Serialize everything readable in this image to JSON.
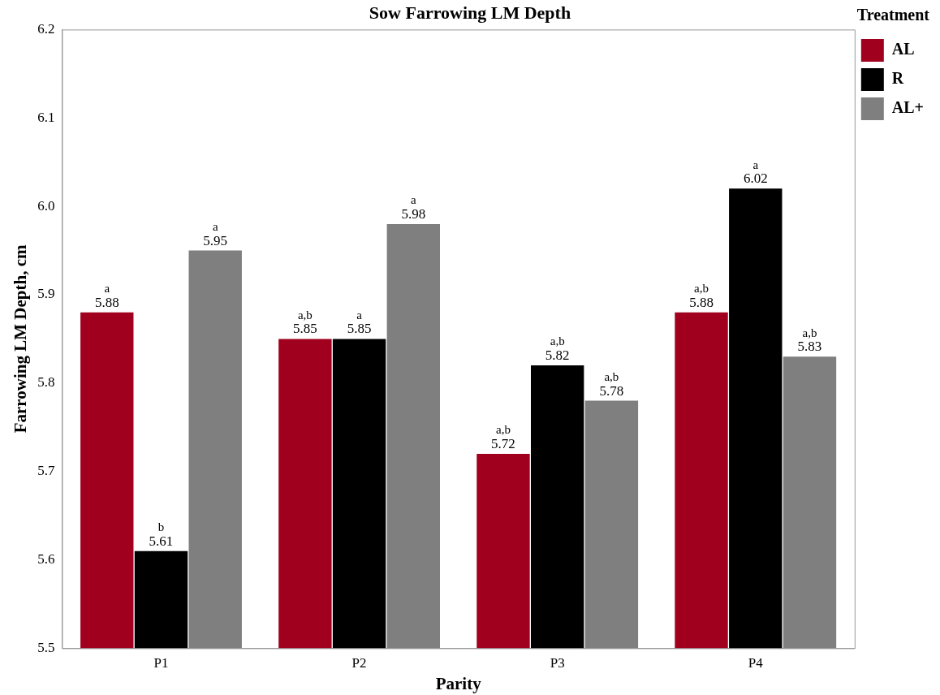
{
  "chart_data": {
    "type": "bar",
    "title": "Sow Farrowing LM Depth",
    "xlabel": "Parity",
    "ylabel": "Farrowing LM Depth, cm",
    "legend_title": "Treatment",
    "legend": "right",
    "grid": false,
    "categories": [
      "P1",
      "P2",
      "P3",
      "P4"
    ],
    "ylim": [
      5.5,
      6.2
    ],
    "yticks": [
      {
        "value": 5.5,
        "label": "5.5"
      },
      {
        "value": 5.6,
        "label": "5.6"
      },
      {
        "value": 5.7,
        "label": "5.7"
      },
      {
        "value": 5.8,
        "label": "5.8"
      },
      {
        "value": 5.9,
        "label": "5.9"
      },
      {
        "value": 6.0,
        "label": "6.0"
      },
      {
        "value": 6.1,
        "label": "6.1"
      },
      {
        "value": 6.2,
        "label": "6.2"
      }
    ],
    "series": [
      {
        "name": "AL",
        "color": "#a0001e",
        "values": [
          5.88,
          5.85,
          5.72,
          5.88
        ],
        "value_labels": [
          "a\n5.88",
          "a,b\n5.85",
          "a,b\n5.72",
          "a,b\n5.88"
        ]
      },
      {
        "name": "R",
        "color": "#000000",
        "values": [
          5.61,
          5.85,
          5.82,
          6.02
        ],
        "value_labels": [
          "b\n5.61",
          "a\n5.85",
          "a,b\n5.82",
          "a\n6.02"
        ]
      },
      {
        "name": "AL+",
        "color": "#7f7f7f",
        "values": [
          5.95,
          5.98,
          5.78,
          5.83
        ],
        "value_labels": [
          "a\n5.95",
          "a\n5.98",
          "a,b\n5.78",
          "a,b\n5.83"
        ]
      }
    ]
  }
}
